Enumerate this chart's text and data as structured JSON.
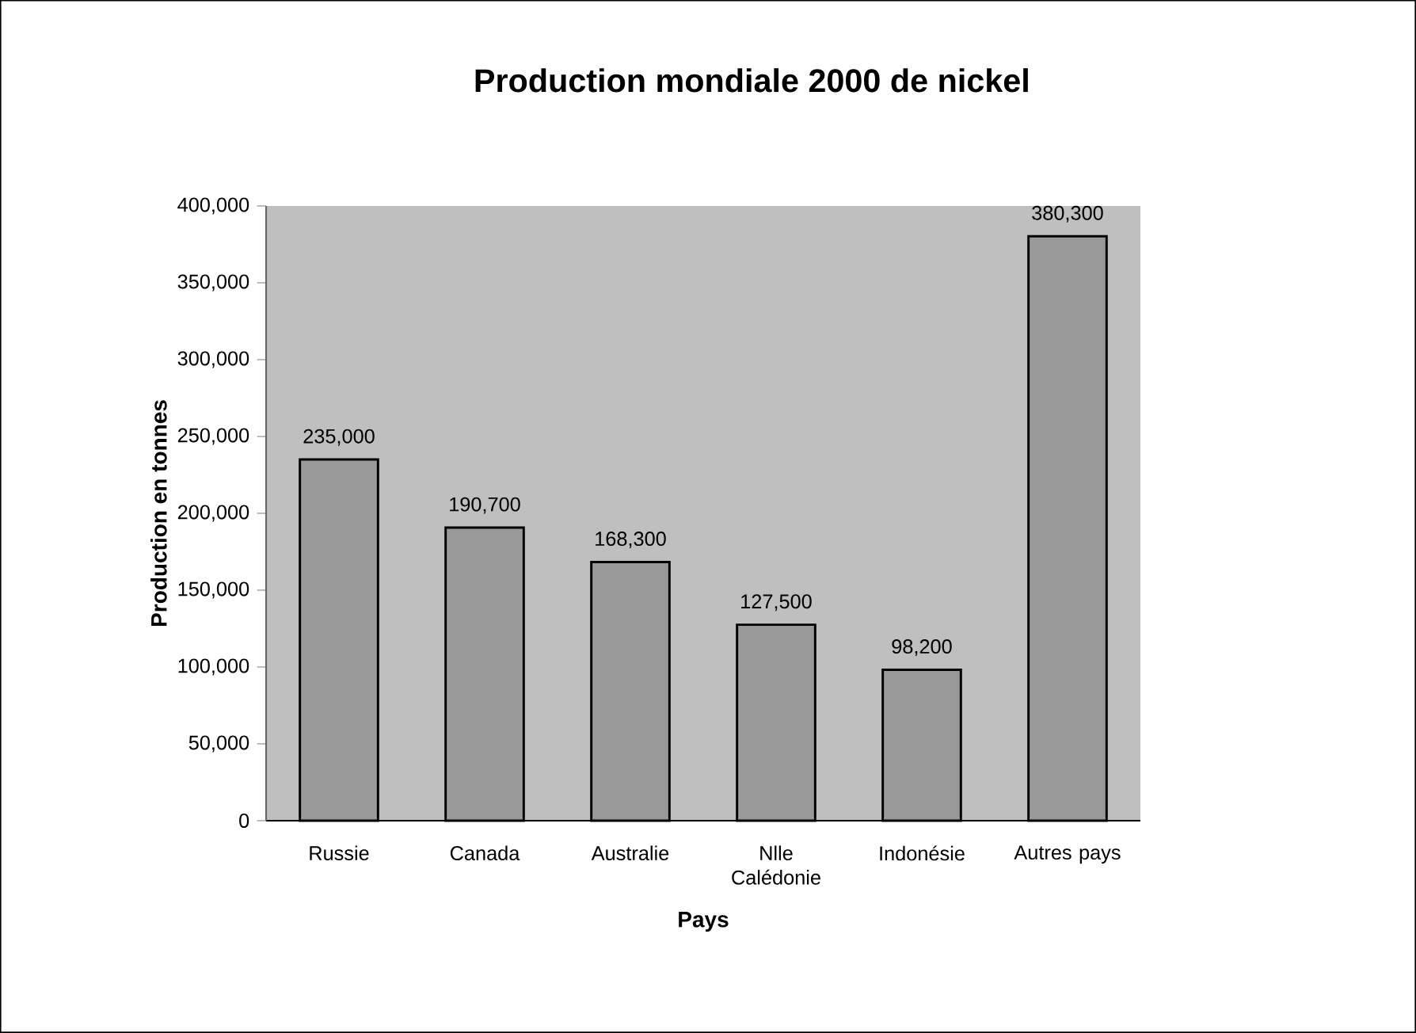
{
  "chart_data": {
    "type": "bar",
    "title": "Production mondiale 2000 de nickel",
    "xlabel": "Pays",
    "ylabel": "Production en tonnes",
    "categories": [
      "Russie",
      "Canada",
      "Australie",
      "Nlle Calédonie",
      "Indonésie",
      "Autres pays"
    ],
    "values": [
      235000,
      190700,
      168300,
      127500,
      98200,
      380300
    ],
    "value_labels": [
      "235,000",
      "190,700",
      "168,300",
      "127,500",
      "98,200",
      "380,300"
    ],
    "color": "#999999",
    "ylim": [
      0,
      400000
    ],
    "yticks": [
      0,
      {
        "value": 50000,
        "label": "50,000"
      },
      {
        "value": 100000,
        "label": "100,000"
      },
      {
        "value": 150000,
        "label": "150,000"
      },
      {
        "value": 200000,
        "label": "200,000"
      },
      {
        "value": 250000,
        "label": "250,000"
      },
      {
        "value": 300000,
        "label": "300,000"
      },
      {
        "value": 350000,
        "label": "350,000"
      },
      {
        "value": 400000,
        "label": "400,000"
      }
    ]
  }
}
